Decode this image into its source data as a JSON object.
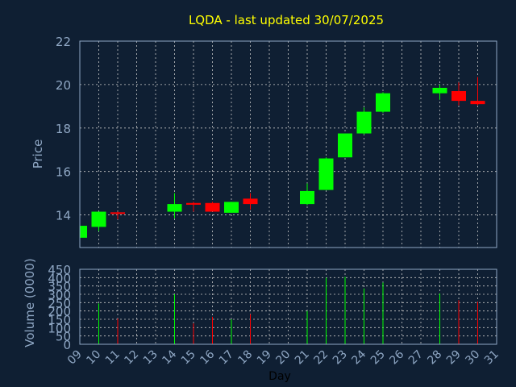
{
  "chart_data": {
    "type": "candlestick",
    "title": "LQDA - last updated 30/07/2025",
    "xlabel": "Day",
    "price_panel": {
      "ylabel": "Price",
      "ylim": [
        12.5,
        22
      ],
      "yticks": [
        14,
        16,
        18,
        20,
        22
      ],
      "grid": true
    },
    "volume_panel": {
      "ylabel": "Volume (0000)",
      "ylim": [
        0,
        450
      ],
      "yticks": [
        0,
        50,
        100,
        150,
        200,
        250,
        300,
        350,
        400,
        450
      ],
      "grid": true
    },
    "x_ticks": [
      "09",
      "10",
      "11",
      "12",
      "13",
      "14",
      "15",
      "16",
      "17",
      "18",
      "19",
      "20",
      "21",
      "22",
      "23",
      "24",
      "25",
      "26",
      "27",
      "28",
      "29",
      "30",
      "31"
    ],
    "x_range": [
      9,
      31
    ],
    "candles": [
      {
        "day": 9,
        "open": 12.95,
        "high": 13.5,
        "low": 12.95,
        "close": 13.5,
        "volume": 0
      },
      {
        "day": 10,
        "open": 13.45,
        "high": 14.15,
        "low": 13.25,
        "close": 14.15,
        "volume": 245
      },
      {
        "day": 11,
        "open": 14.12,
        "high": 14.15,
        "low": 13.8,
        "close": 14.05,
        "volume": 155
      },
      {
        "day": 14,
        "open": 14.15,
        "high": 15.0,
        "low": 13.85,
        "close": 14.5,
        "volume": 300
      },
      {
        "day": 15,
        "open": 14.55,
        "high": 14.6,
        "low": 14.15,
        "close": 14.47,
        "volume": 125
      },
      {
        "day": 16,
        "open": 14.55,
        "high": 14.6,
        "low": 14.15,
        "close": 14.15,
        "volume": 165
      },
      {
        "day": 17,
        "open": 14.1,
        "high": 14.6,
        "low": 14.1,
        "close": 14.6,
        "volume": 150
      },
      {
        "day": 18,
        "open": 14.75,
        "high": 15.0,
        "low": 14.25,
        "close": 14.5,
        "volume": 180
      },
      {
        "day": 21,
        "open": 14.5,
        "high": 15.45,
        "low": 14.45,
        "close": 15.1,
        "volume": 200
      },
      {
        "day": 22,
        "open": 15.15,
        "high": 16.65,
        "low": 15.15,
        "close": 16.6,
        "volume": 400
      },
      {
        "day": 23,
        "open": 16.65,
        "high": 17.75,
        "low": 16.65,
        "close": 17.75,
        "volume": 405
      },
      {
        "day": 24,
        "open": 17.75,
        "high": 18.95,
        "low": 17.7,
        "close": 18.75,
        "volume": 335
      },
      {
        "day": 25,
        "open": 18.75,
        "high": 19.65,
        "low": 18.7,
        "close": 19.6,
        "volume": 370
      },
      {
        "day": 28,
        "open": 19.6,
        "high": 20.0,
        "low": 19.3,
        "close": 19.85,
        "volume": 305
      },
      {
        "day": 29,
        "open": 19.7,
        "high": 20.1,
        "low": 19.05,
        "close": 19.25,
        "volume": 265
      },
      {
        "day": 30,
        "open": 19.25,
        "high": 20.35,
        "low": 19.05,
        "close": 19.1,
        "volume": 255
      }
    ],
    "colors": {
      "background": "#0f1f33",
      "up": "#00ff00",
      "down": "#ff0000",
      "grid": "#c8c8c8",
      "frame": "#8fa7c4",
      "text": "#8fa7c4",
      "title": "#ffff00"
    }
  }
}
